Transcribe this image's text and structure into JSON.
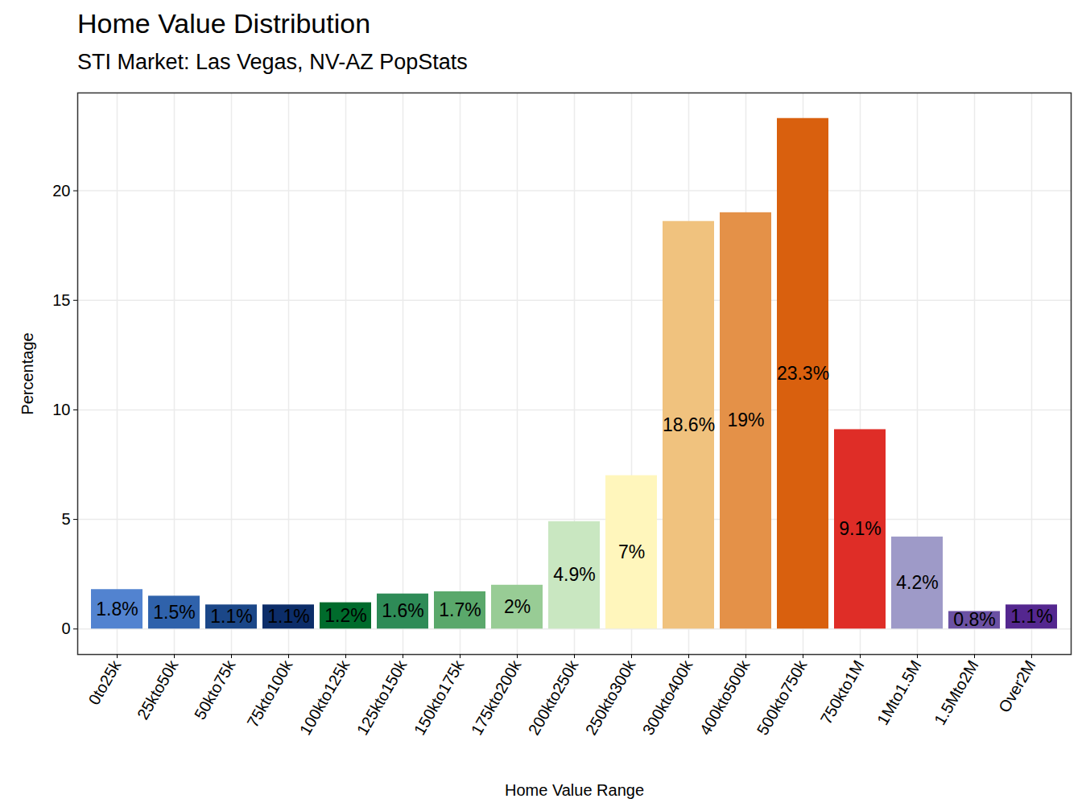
{
  "chart_data": {
    "type": "bar",
    "title": "Home Value Distribution",
    "subtitle": "STI Market: Las Vegas, NV-AZ PopStats",
    "x_label": "Home Value Range",
    "y_label": "Percentage",
    "categories": [
      "0to25k",
      "25kto50k",
      "50kto75k",
      "75kto100k",
      "100kto125k",
      "125kto150k",
      "150kto175k",
      "175kto200k",
      "200kto250k",
      "250kto300k",
      "300kto400k",
      "400kto500k",
      "500kto750k",
      "750kto1M",
      "1Mto1.5M",
      "1.5Mto2M",
      "Over2M"
    ],
    "values": [
      1.8,
      1.5,
      1.1,
      1.1,
      1.2,
      1.6,
      1.7,
      2,
      4.9,
      7,
      18.6,
      19,
      23.3,
      9.1,
      4.2,
      0.8,
      1.1
    ],
    "value_labels": [
      "1.8%",
      "1.5%",
      "1.1%",
      "1.1%",
      "1.2%",
      "1.6%",
      "1.7%",
      "2%",
      "4.9%",
      "7%",
      "18.6%",
      "19%",
      "23.3%",
      "9.1%",
      "4.2%",
      "0.8%",
      "1.1%"
    ],
    "colors": [
      "#5283d0",
      "#2f62ab",
      "#1b4788",
      "#0c2d69",
      "#006b2c",
      "#2e8b57",
      "#5aa86b",
      "#98cc95",
      "#c9e7c1",
      "#fff6bc",
      "#f0c27e",
      "#e49148",
      "#d9600e",
      "#df2d27",
      "#9e9ac8",
      "#6b51a3",
      "#54278f"
    ],
    "ylim": [
      -1.165,
      24.465
    ],
    "yticks": [
      0,
      5,
      10,
      15,
      20
    ],
    "grid": true,
    "data_labels": true
  }
}
